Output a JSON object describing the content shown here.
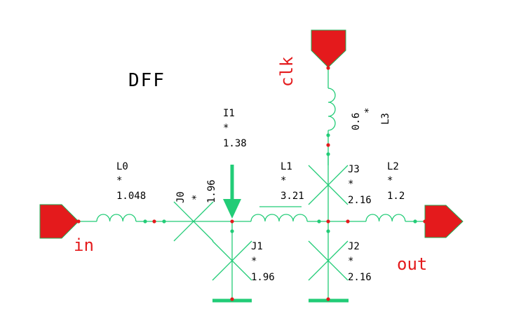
{
  "title": "DFF",
  "colors": {
    "wire": "#22cc77",
    "port_fill": "#e41a1c",
    "port_label": "#e41a1c",
    "text": "#000000",
    "node": "#e41a1c"
  },
  "ports": {
    "in": {
      "label": "in"
    },
    "out": {
      "label": "out"
    },
    "clk": {
      "label": "clk"
    }
  },
  "components": {
    "L0": {
      "name": "L0",
      "star": "*",
      "value": "1.048"
    },
    "L1": {
      "name": "L1",
      "star": "*",
      "value": "3.21"
    },
    "L2": {
      "name": "L2",
      "star": "*",
      "value": "1.2"
    },
    "L3": {
      "name": "L3",
      "star": "*",
      "value": "0.6"
    },
    "J0": {
      "name": "J0",
      "star": "*",
      "value": "1.96"
    },
    "J1": {
      "name": "J1",
      "star": "*",
      "value": "1.96"
    },
    "J2": {
      "name": "J2",
      "star": "*",
      "value": "2.16"
    },
    "J3": {
      "name": "J3",
      "star": "*",
      "value": "2.16"
    },
    "I1": {
      "name": "I1",
      "star": "*",
      "value": "1.38"
    }
  }
}
